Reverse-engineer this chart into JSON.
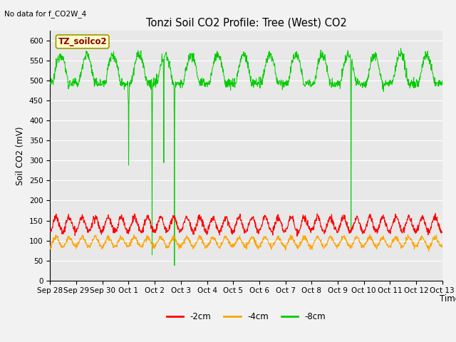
{
  "title": "Tonzi Soil CO2 Profile: Tree (West) CO2",
  "no_data_label": "No data for f_CO2W_4",
  "box_label": "TZ_soilco2",
  "xlabel": "Time",
  "ylabel": "Soil CO2 (mV)",
  "ylim": [
    0,
    625
  ],
  "yticks": [
    0,
    50,
    100,
    150,
    200,
    250,
    300,
    350,
    400,
    450,
    500,
    550,
    600
  ],
  "colors": {
    "red": "#ff0000",
    "orange": "#ffa500",
    "green": "#00cc00",
    "background": "#e8e8e8",
    "fig_bg": "#f2f2f2",
    "grid": "#ffffff"
  },
  "legend_entries": [
    "-2cm",
    "-4cm",
    "-8cm"
  ],
  "x_tick_labels": [
    "Sep 28",
    "Sep 29",
    "Sep 30",
    "Oct 1",
    "Oct 2",
    "Oct 3",
    "Oct 4",
    "Oct 5",
    "Oct 6",
    "Oct 7",
    "Oct 8",
    "Oct 9",
    "Oct 10",
    "Oct 11",
    "Oct 12",
    "Oct 13"
  ],
  "n_days": 15,
  "pts_per_day": 96
}
